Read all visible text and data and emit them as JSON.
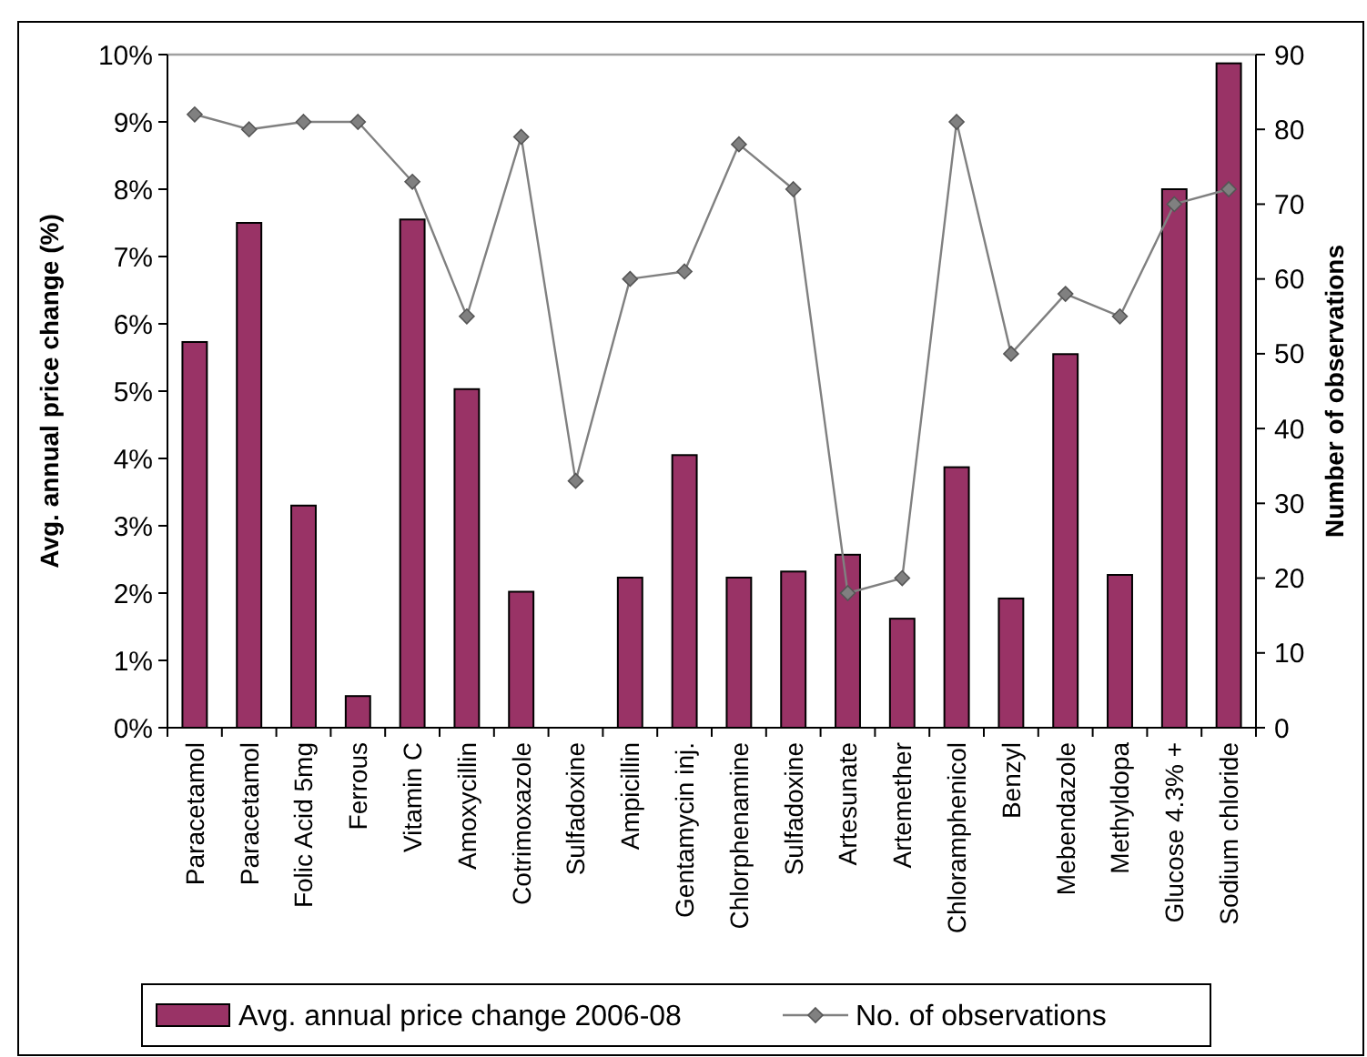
{
  "chart_data": {
    "type": "bar",
    "ylabel": "Avg. annual price change (%)",
    "y2label": "Number of observations",
    "categories": [
      "Paracetamol",
      "Paracetamol",
      "Folic Acid 5mg",
      "Ferrous",
      "Vitamin C",
      "Amoxycillin",
      "Cotrimoxazole",
      "Sulfadoxine",
      "Ampicillin",
      "Gentamycin inj.",
      "Chlorphenamine",
      "Sulfadoxine",
      "Artesunate",
      "Artemether",
      "Chloramphenicol",
      "Benzyl",
      "Mebendazole",
      "Methyldopa",
      "Glucose 4.3% +",
      "Sodium chloride"
    ],
    "series": [
      {
        "name": "Avg. annual price change 2006-08",
        "color": "#993366",
        "values": [
          5.73,
          7.5,
          3.3,
          0.47,
          7.55,
          5.03,
          2.02,
          null,
          2.23,
          4.05,
          2.23,
          2.32,
          2.57,
          1.62,
          3.87,
          1.92,
          5.55,
          2.27,
          8.0,
          9.87
        ]
      },
      {
        "name": "No. of observations",
        "type": "line",
        "axis": "y2",
        "color": "#808080",
        "marker": "diamond",
        "values": [
          82,
          80,
          81,
          81,
          73,
          55,
          79,
          33,
          60,
          61,
          78,
          72,
          18,
          20,
          81,
          50,
          58,
          55,
          70,
          72
        ]
      }
    ],
    "ylim": [
      0,
      10
    ],
    "yticks": [
      {
        "value": 0,
        "label": "0%"
      },
      {
        "value": 1,
        "label": "1%"
      },
      {
        "value": 2,
        "label": "2%"
      },
      {
        "value": 3,
        "label": "3%"
      },
      {
        "value": 4,
        "label": "4%"
      },
      {
        "value": 5,
        "label": "5%"
      },
      {
        "value": 6,
        "label": "6%"
      },
      {
        "value": 7,
        "label": "7%"
      },
      {
        "value": 8,
        "label": "8%"
      },
      {
        "value": 9,
        "label": "9%"
      },
      {
        "value": 10,
        "label": "10%"
      }
    ],
    "y2lim": [
      0,
      90
    ],
    "y2ticks": [
      0,
      10,
      20,
      30,
      40,
      50,
      60,
      70,
      80,
      90
    ],
    "legend": "bottom",
    "grid": false
  }
}
